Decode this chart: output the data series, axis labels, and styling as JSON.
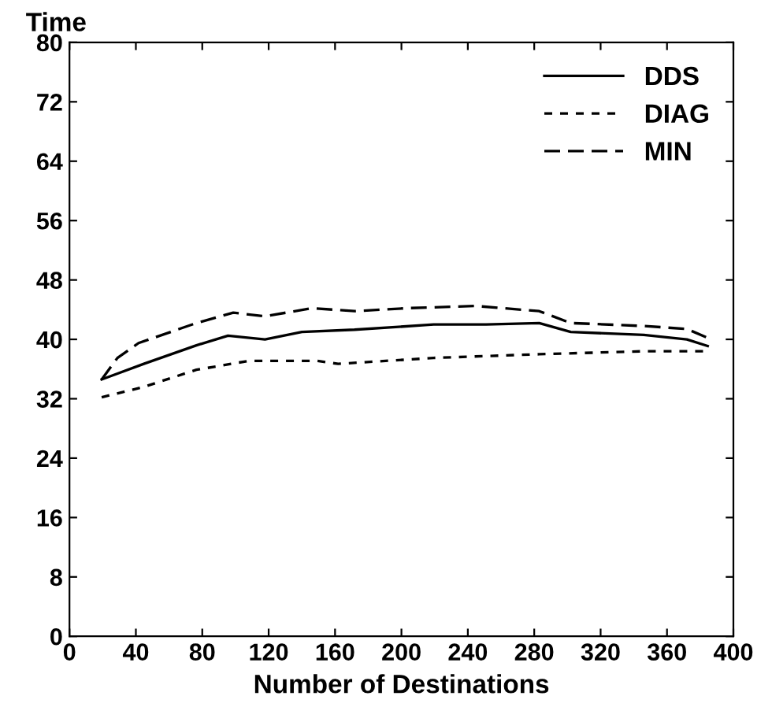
{
  "chart_data": {
    "type": "line",
    "xlabel": "Number of Destinations",
    "ylabel": "Time",
    "xlim": [
      0,
      400
    ],
    "ylim": [
      0,
      80
    ],
    "xticks": [
      0,
      40,
      80,
      120,
      160,
      200,
      240,
      280,
      320,
      360,
      400
    ],
    "yticks": [
      0,
      8,
      16,
      24,
      32,
      40,
      48,
      56,
      64,
      72,
      80
    ],
    "grid": false,
    "legend": "top right",
    "series": [
      {
        "name": "DDS",
        "color": "#000000",
        "line_style": "solid",
        "x": [
          19.4,
          44.8,
          76.5,
          95.5,
          117.8,
          140,
          171.7,
          219.4,
          251,
          283,
          302,
          346,
          372,
          384.5
        ],
        "values": [
          34.6,
          36.7,
          39.2,
          40.5,
          40,
          41,
          41.3,
          42,
          42,
          42.2,
          41,
          40.6,
          40,
          39.1
        ]
      },
      {
        "name": "DIAG",
        "color": "#000000",
        "line_style": "dotted",
        "x": [
          19.4,
          44.8,
          76.5,
          108,
          149.3,
          161.9,
          219.4,
          283,
          346,
          384.5
        ],
        "values": [
          32.2,
          33.6,
          35.9,
          37.1,
          37.1,
          36.7,
          37.5,
          38,
          38.4,
          38.4
        ]
      },
      {
        "name": "MIN",
        "color": "#000000",
        "line_style": "dashed",
        "x": [
          19.4,
          28.9,
          41.6,
          76.5,
          98.7,
          117.8,
          146,
          171.7,
          203.5,
          244.8,
          283,
          302,
          346,
          372,
          384.5
        ],
        "values": [
          34.6,
          37.5,
          39.5,
          42.2,
          43.6,
          43.1,
          44.2,
          43.8,
          44.2,
          44.5,
          43.8,
          42.2,
          41.8,
          41.4,
          40.2
        ]
      }
    ]
  }
}
